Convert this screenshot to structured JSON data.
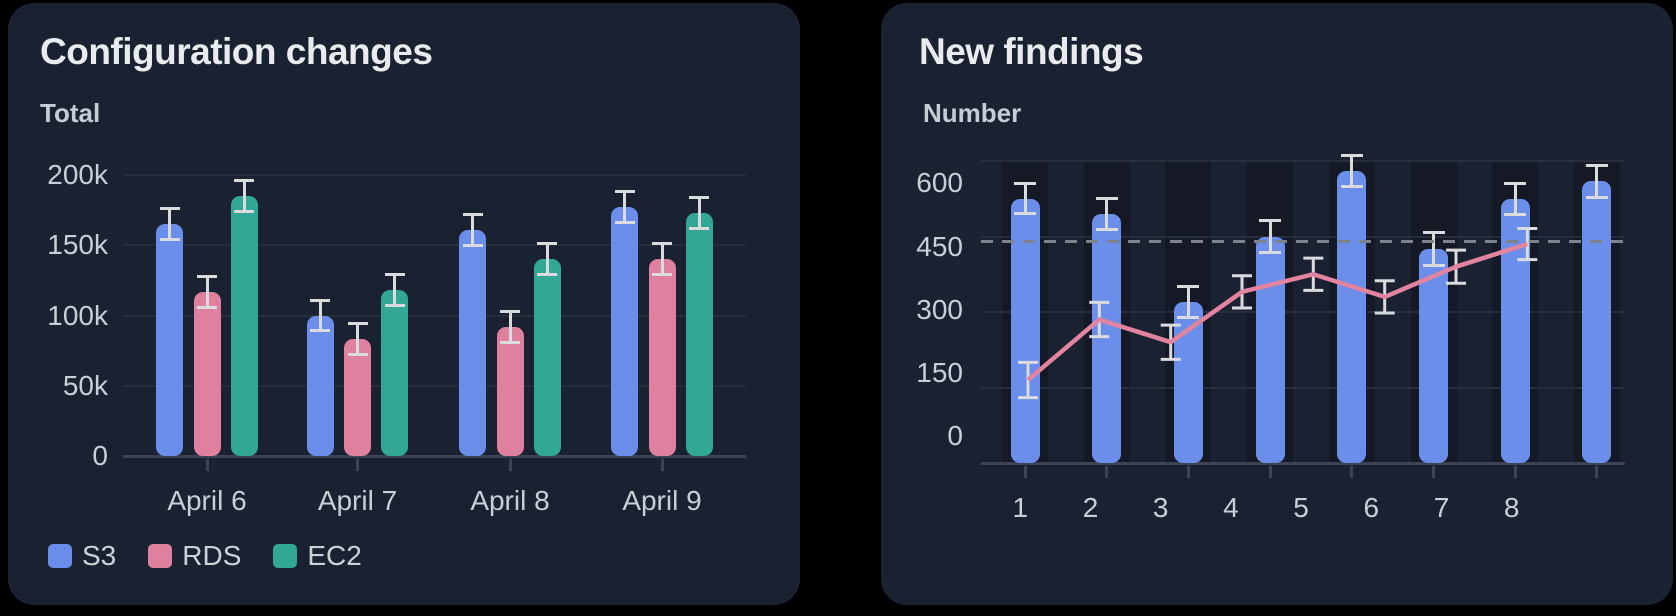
{
  "page": {
    "background": "#000000",
    "panel_background": "#1a2130"
  },
  "colors": {
    "s3_blue": "#6b8eea",
    "rds_pink": "#e0809f",
    "ec2_teal": "#32a795",
    "trend_line_pink": "#e2839f",
    "error_bar": "#d9dbdf",
    "reference_dash": "#7c838c",
    "gridline": "#262e3c",
    "axis": "#3b4354",
    "title_text": "#e9ecef",
    "label_text": "#c9cfd7"
  },
  "chart_data": [
    {
      "type": "bar",
      "title": "Configuration changes",
      "ylabel": "Total",
      "categories": [
        "April 6",
        "April 7",
        "April 8",
        "April 9"
      ],
      "series": [
        {
          "name": "S3",
          "color": "#6b8eea",
          "values": [
            165000,
            100000,
            161000,
            177000
          ],
          "errors": [
            11000,
            11000,
            11000,
            11000
          ]
        },
        {
          "name": "RDS",
          "color": "#e0809f",
          "values": [
            117000,
            83000,
            92000,
            140000
          ],
          "errors": [
            11000,
            11000,
            11000,
            11000
          ]
        },
        {
          "name": "EC2",
          "color": "#32a795",
          "values": [
            185000,
            118000,
            140000,
            173000
          ],
          "errors": [
            11000,
            11000,
            11000,
            11000
          ]
        }
      ],
      "ylim": [
        0,
        200000
      ],
      "yticks": [
        {
          "v": 0,
          "label": "0"
        },
        {
          "v": 50000,
          "label": "50k"
        },
        {
          "v": 100000,
          "label": "100k"
        },
        {
          "v": 150000,
          "label": "150k"
        },
        {
          "v": 200000,
          "label": "200k"
        }
      ],
      "grid": true,
      "error_bars": true,
      "legend_position": "bottom-left"
    },
    {
      "type": "combo",
      "title": "New findings",
      "ylabel": "Number",
      "categories": [
        "1",
        "2",
        "3",
        "4",
        "5",
        "6",
        "7",
        "8"
      ],
      "bars": {
        "color": "#6b8eea",
        "values": [
          525,
          495,
          320,
          450,
          580,
          425,
          525,
          560
        ],
        "errors": [
          30,
          31,
          30,
          31,
          30,
          32,
          31,
          32
        ]
      },
      "line": {
        "color": "#e2839f",
        "values": [
          165,
          285,
          240,
          340,
          375,
          330,
          390,
          435
        ],
        "errors": [
          35,
          34,
          34,
          32,
          32,
          32,
          33,
          31
        ]
      },
      "reference_line": {
        "value": 440,
        "style": "dashed",
        "color": "#7c838c"
      },
      "ylim": [
        0,
        600
      ],
      "yticks": [
        {
          "v": 0,
          "label": "0"
        },
        {
          "v": 150,
          "label": "150"
        },
        {
          "v": 300,
          "label": "300"
        },
        {
          "v": 450,
          "label": "450"
        },
        {
          "v": 600,
          "label": "600"
        }
      ],
      "grid": true,
      "error_bars": true,
      "legend_position": "none"
    }
  ]
}
